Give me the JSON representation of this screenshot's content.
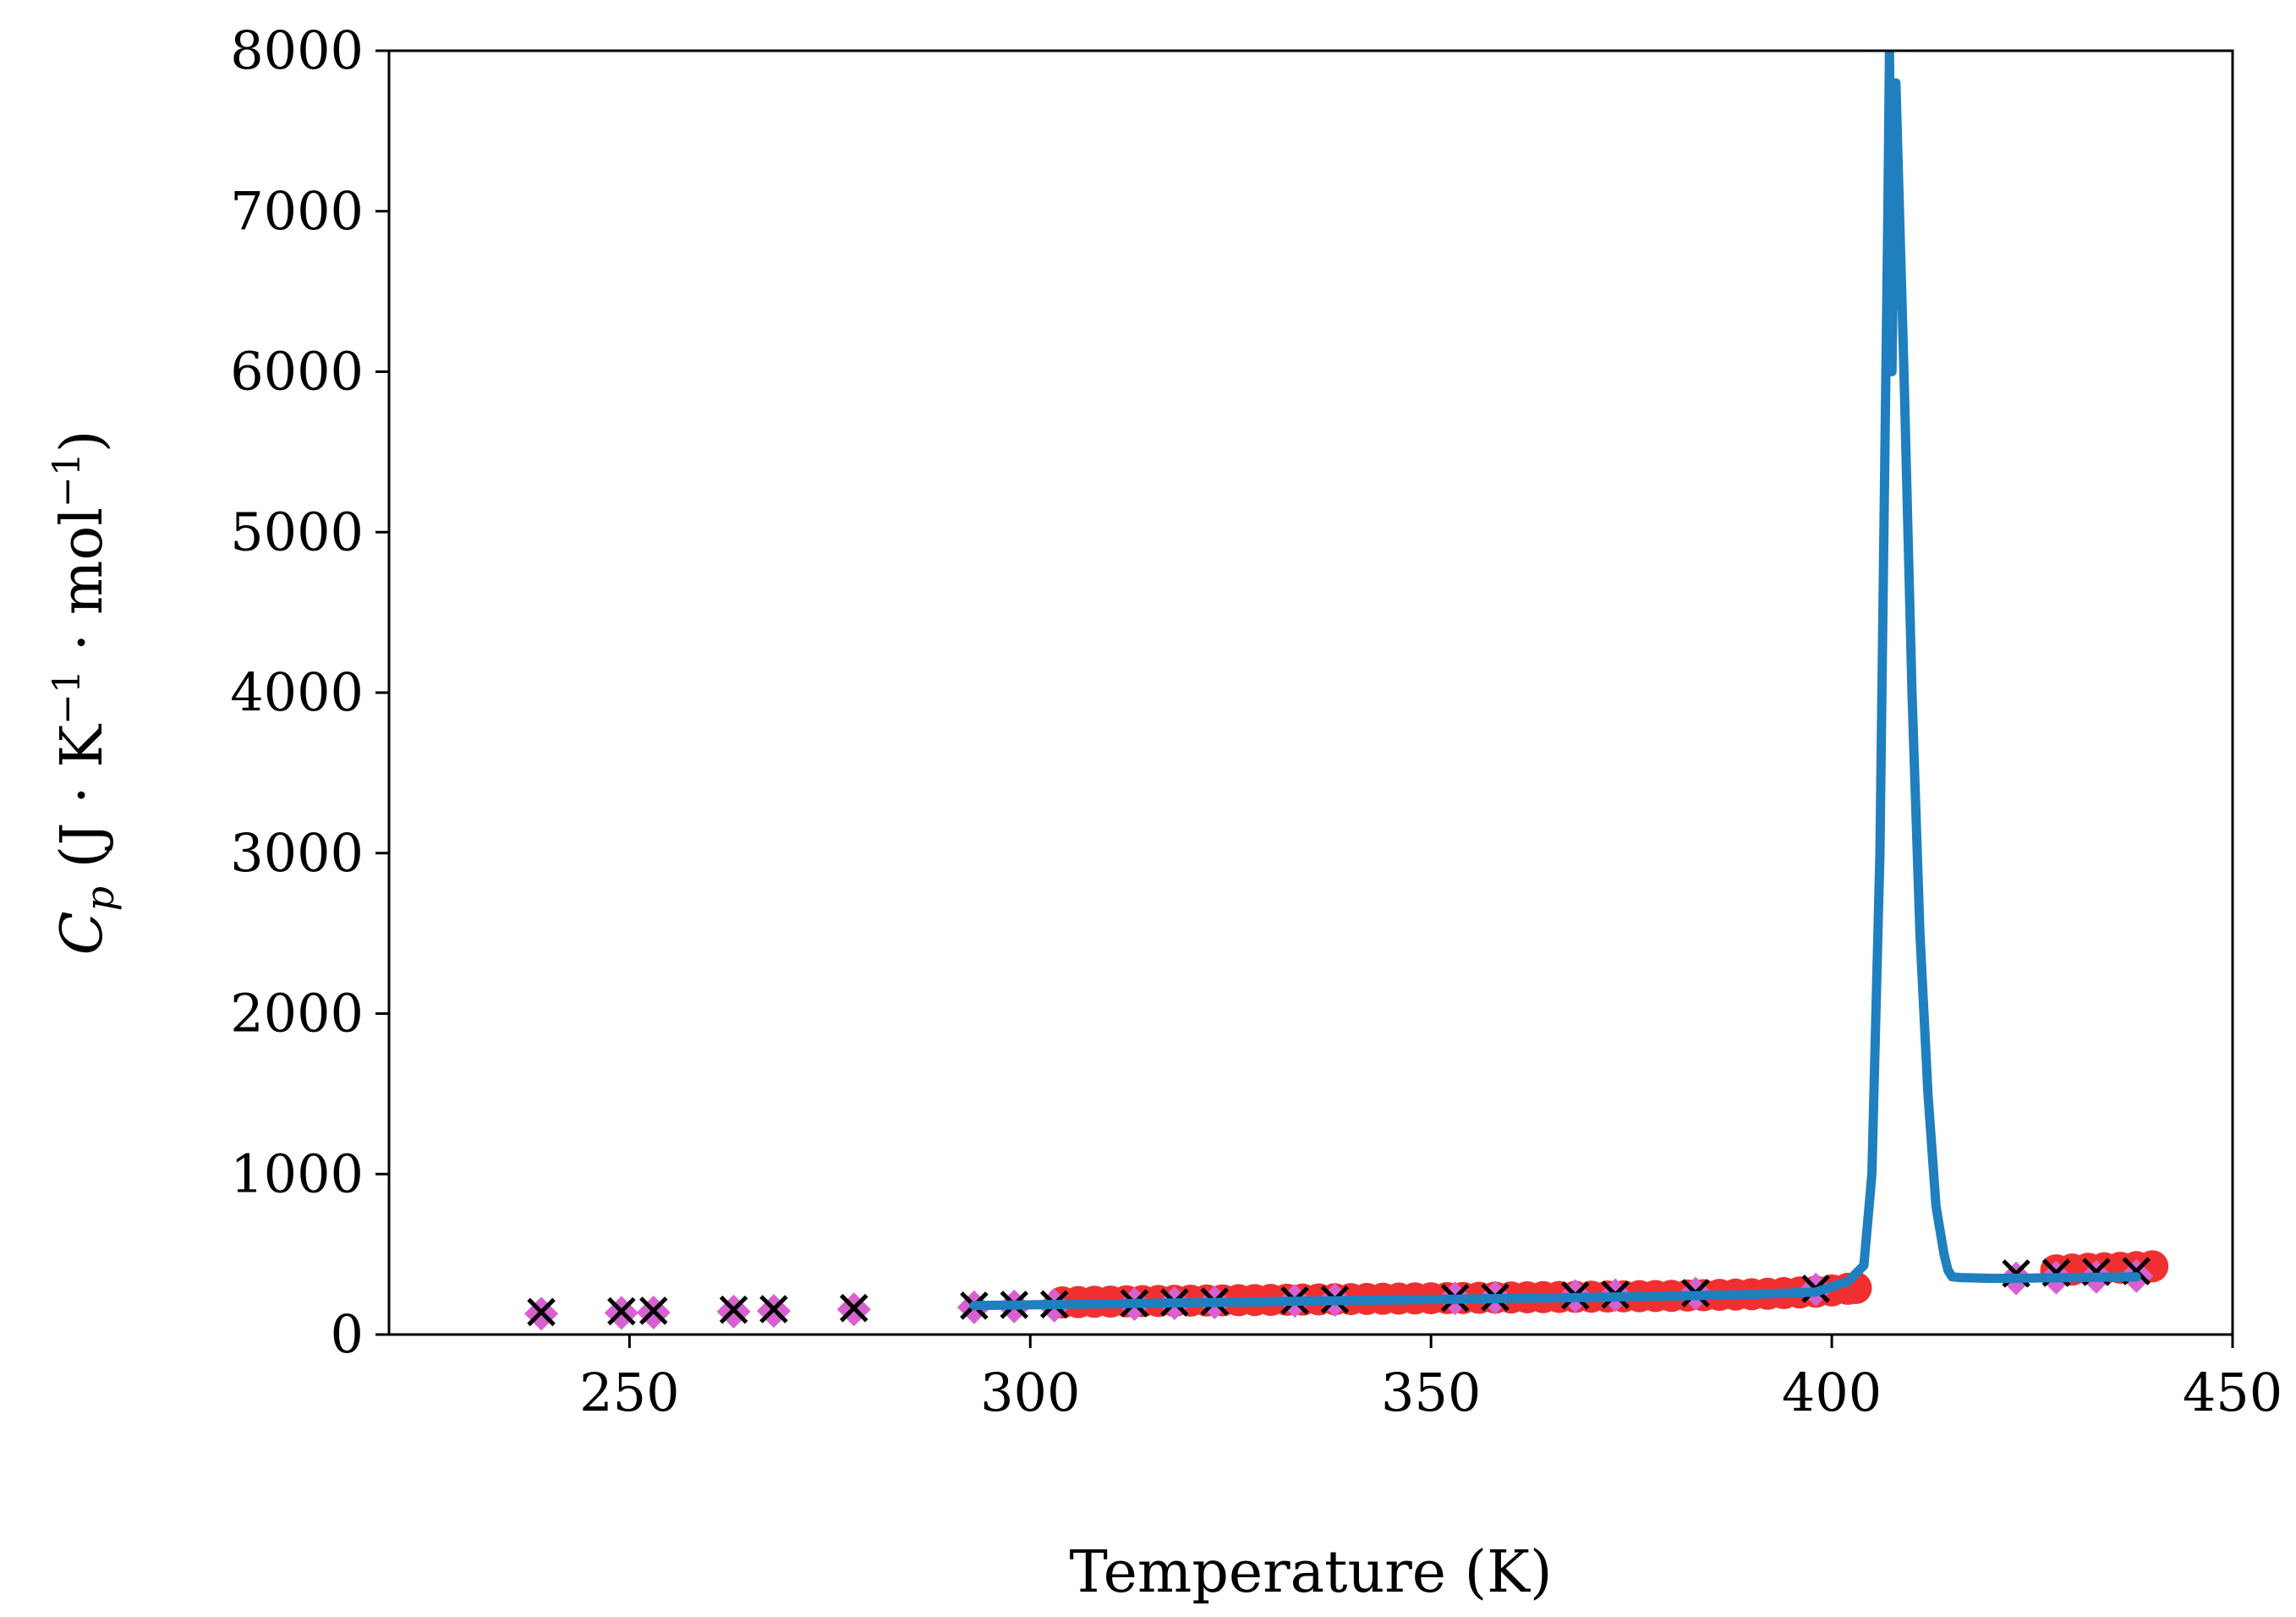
{
  "chart_data": {
    "type": "scatter",
    "title": "",
    "xlabel": "Temperature (K)",
    "ylabel_parts": {
      "symbol": "C",
      "subscript": "p",
      "unit_open": " (J · K",
      "unit_exp1": "−1",
      "unit_mid": " · mol",
      "unit_exp2": "−1",
      "unit_close": ")"
    },
    "xlim": [
      220,
      450
    ],
    "ylim": [
      0,
      8000
    ],
    "xticks": [
      250,
      300,
      350,
      400,
      450
    ],
    "yticks": [
      0,
      1000,
      2000,
      3000,
      4000,
      5000,
      6000,
      7000,
      8000
    ],
    "grid": false,
    "legend": "none",
    "colors": {
      "red_series": "#f03030",
      "magenta_series": "#d860d0",
      "cross_series": "#000000",
      "line_series": "#1f7fbf"
    },
    "series": [
      {
        "marker": "circle",
        "color": "#f03030",
        "x": [
          304,
          306,
          308,
          310,
          312,
          314,
          316,
          318,
          320,
          322,
          324,
          326,
          328,
          330,
          332,
          334,
          336,
          338,
          340,
          342,
          344,
          346,
          348,
          350,
          352,
          354,
          356,
          358,
          360,
          362,
          364,
          366,
          368,
          370,
          372,
          374,
          376,
          378,
          380,
          382,
          384,
          386,
          388,
          390,
          392,
          394,
          396,
          398,
          400,
          402,
          403,
          428,
          430,
          432,
          434,
          436,
          438,
          440
        ],
        "y": [
          200,
          202,
          204,
          205,
          207,
          208,
          209,
          210,
          211,
          212,
          213,
          214,
          215,
          216,
          217,
          218,
          219,
          220,
          221,
          222,
          223,
          224,
          225,
          226,
          227,
          228,
          229,
          230,
          231,
          232,
          233,
          234,
          235,
          236,
          237,
          238,
          239,
          240,
          241,
          243,
          245,
          247,
          249,
          251,
          254,
          258,
          262,
          267,
          275,
          285,
          290,
          400,
          405,
          410,
          413,
          416,
          420,
          425
        ]
      },
      {
        "marker": "diamond",
        "color": "#d860d0",
        "x": [
          239,
          249,
          253,
          263,
          268,
          278,
          293,
          298,
          303,
          313,
          318,
          323,
          333,
          338,
          353,
          358,
          368,
          373,
          383,
          398,
          423,
          428,
          433,
          438
        ],
        "y": [
          130,
          135,
          137,
          143,
          147,
          157,
          170,
          175,
          180,
          190,
          195,
          200,
          210,
          215,
          225,
          230,
          240,
          245,
          255,
          280,
          350,
          355,
          360,
          365
        ]
      },
      {
        "marker": "cross",
        "color": "#000000",
        "x": [
          239,
          249,
          253,
          263,
          268,
          278,
          293,
          298,
          303,
          313,
          318,
          323,
          333,
          338,
          353,
          358,
          368,
          373,
          383,
          398,
          423,
          428,
          433,
          438
        ],
        "y": [
          140,
          145,
          148,
          155,
          158,
          165,
          180,
          185,
          188,
          195,
          200,
          205,
          212,
          218,
          228,
          232,
          243,
          248,
          258,
          285,
          380,
          385,
          390,
          395
        ]
      },
      {
        "marker": "line",
        "color": "#1f7fbf",
        "x": [
          293,
          300,
          310,
          320,
          330,
          340,
          350,
          360,
          370,
          380,
          390,
          398,
          402,
          404,
          405,
          406,
          406.5,
          407,
          407.2,
          407.5,
          408,
          409,
          410,
          411,
          412,
          413,
          414,
          414.5,
          415,
          416,
          420,
          425,
          430,
          435,
          438
        ],
        "y": [
          180,
          185,
          192,
          198,
          205,
          212,
          218,
          225,
          232,
          240,
          250,
          265,
          330,
          430,
          1000,
          3000,
          5000,
          7000,
          8000,
          6000,
          7800,
          6000,
          4000,
          2500,
          1500,
          800,
          500,
          400,
          360,
          355,
          350,
          352,
          355,
          358,
          360
        ]
      }
    ]
  }
}
